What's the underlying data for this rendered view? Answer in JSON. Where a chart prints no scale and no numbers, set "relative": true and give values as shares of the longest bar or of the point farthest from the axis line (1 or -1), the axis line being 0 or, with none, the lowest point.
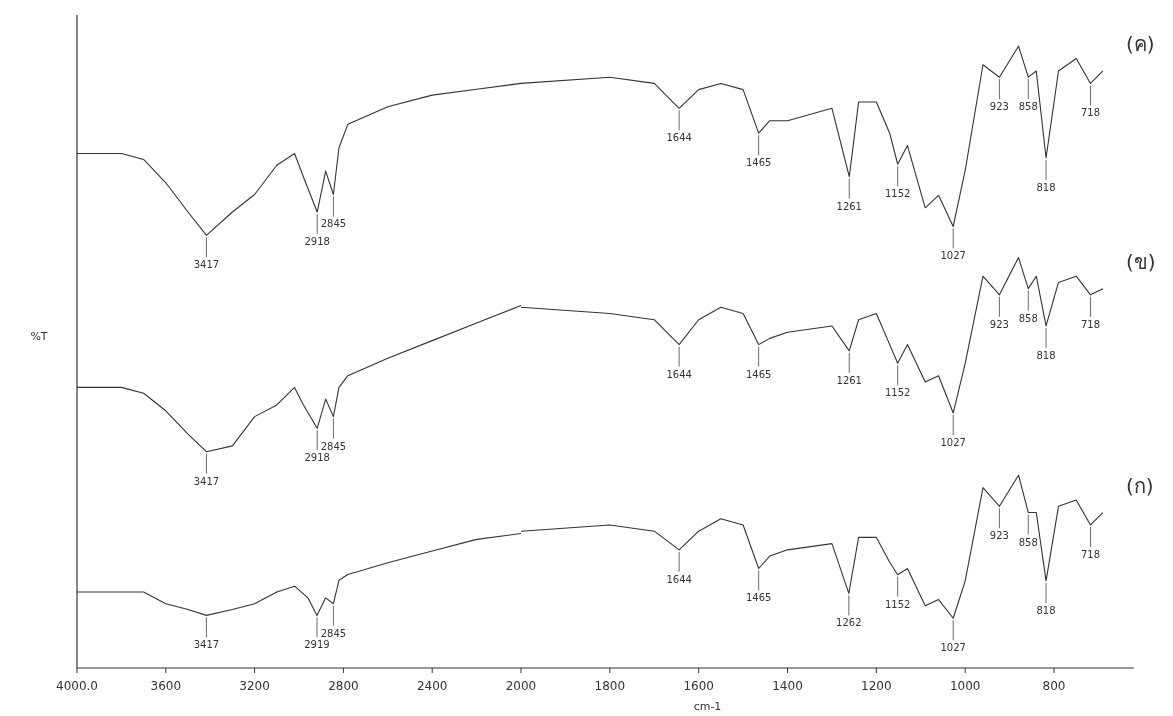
{
  "chart_data": [
    {
      "type": "line",
      "relative": true,
      "ylabel": "%T",
      "xlim": [
        4000,
        2000
      ],
      "xticks": [
        {
          "value": 4000,
          "label": "4000.0"
        },
        3600,
        3200,
        2800,
        2400
      ],
      "marker": "none",
      "line_style": "solid",
      "series": [
        {
          "color": "#333333",
          "x": [
            4000,
            3800,
            3700,
            3600,
            3500,
            3417,
            3300,
            3200,
            3100,
            3020,
            2980,
            2918,
            2880,
            2845,
            2820,
            2780,
            2600,
            2400,
            2200,
            2000
          ],
          "values": [
            0.88,
            0.88,
            0.87,
            0.83,
            0.78,
            0.74,
            0.78,
            0.81,
            0.86,
            0.88,
            0.84,
            0.78,
            0.85,
            0.81,
            0.89,
            0.93,
            0.96,
            0.98,
            0.99,
            1.0
          ]
        },
        {
          "color": "#333333",
          "x": [
            4000,
            3800,
            3700,
            3600,
            3500,
            3417,
            3300,
            3200,
            3100,
            3020,
            2980,
            2918,
            2880,
            2845,
            2820,
            2780,
            2600,
            2400,
            2200,
            2000
          ],
          "values": [
            0.48,
            0.48,
            0.47,
            0.44,
            0.4,
            0.37,
            0.38,
            0.43,
            0.45,
            0.48,
            0.45,
            0.41,
            0.46,
            0.43,
            0.48,
            0.5,
            0.53,
            0.56,
            0.59,
            0.62
          ]
        },
        {
          "color": "#333333",
          "x": [
            4000,
            3800,
            3700,
            3600,
            3500,
            3417,
            3300,
            3200,
            3100,
            3020,
            2960,
            2919,
            2880,
            2845,
            2820,
            2780,
            2600,
            2400,
            2200,
            2000
          ],
          "values": [
            0.13,
            0.13,
            0.13,
            0.11,
            0.1,
            0.09,
            0.1,
            0.11,
            0.13,
            0.14,
            0.12,
            0.09,
            0.12,
            0.11,
            0.15,
            0.16,
            0.18,
            0.2,
            0.22,
            0.23
          ]
        }
      ],
      "annotations": [
        {
          "text": "3417",
          "x": 3417,
          "y": 0.74
        },
        {
          "text": "2918",
          "x": 2918,
          "y": 0.78
        },
        {
          "text": "2845",
          "x": 2845,
          "y": 0.81
        },
        {
          "text": "3417",
          "x": 3417,
          "y": 0.37
        },
        {
          "text": "2918",
          "x": 2918,
          "y": 0.41
        },
        {
          "text": "2845",
          "x": 2845,
          "y": 0.43
        },
        {
          "text": "3417",
          "x": 3417,
          "y": 0.09
        },
        {
          "text": "2919",
          "x": 2919,
          "y": 0.09
        },
        {
          "text": "2845",
          "x": 2845,
          "y": 0.11
        }
      ]
    },
    {
      "type": "line",
      "relative": true,
      "xlabel": "cm-1",
      "xlim": [
        2000,
        620
      ],
      "xticks": [
        2000,
        1800,
        1600,
        1400,
        1200,
        1000,
        800
      ],
      "marker": "none",
      "line_style": "solid",
      "series": [
        {
          "name": "(ค)",
          "color": "#333333",
          "x": [
            2000,
            1800,
            1700,
            1644,
            1600,
            1550,
            1500,
            1465,
            1440,
            1400,
            1300,
            1261,
            1240,
            1200,
            1170,
            1152,
            1130,
            1090,
            1060,
            1027,
            1000,
            960,
            923,
            880,
            858,
            840,
            818,
            790,
            750,
            718,
            690
          ],
          "values": [
            0.94,
            0.95,
            0.94,
            0.9,
            0.93,
            0.94,
            0.93,
            0.86,
            0.88,
            0.88,
            0.9,
            0.79,
            0.91,
            0.91,
            0.86,
            0.81,
            0.84,
            0.74,
            0.76,
            0.71,
            0.8,
            0.97,
            0.95,
            1.0,
            0.95,
            0.96,
            0.82,
            0.96,
            0.98,
            0.94,
            0.96
          ]
        },
        {
          "name": "(ข)",
          "color": "#333333",
          "x": [
            2000,
            1800,
            1700,
            1644,
            1600,
            1550,
            1500,
            1465,
            1440,
            1400,
            1300,
            1261,
            1240,
            1200,
            1170,
            1152,
            1130,
            1090,
            1060,
            1027,
            1000,
            960,
            923,
            880,
            858,
            840,
            818,
            790,
            750,
            718,
            690
          ],
          "values": [
            0.58,
            0.57,
            0.56,
            0.52,
            0.56,
            0.58,
            0.57,
            0.52,
            0.53,
            0.54,
            0.55,
            0.51,
            0.56,
            0.57,
            0.52,
            0.49,
            0.52,
            0.46,
            0.47,
            0.41,
            0.49,
            0.63,
            0.6,
            0.66,
            0.61,
            0.63,
            0.55,
            0.62,
            0.63,
            0.6,
            0.61
          ]
        },
        {
          "name": "(ก)",
          "color": "#333333",
          "x": [
            2000,
            1800,
            1700,
            1644,
            1600,
            1550,
            1500,
            1465,
            1440,
            1400,
            1300,
            1262,
            1240,
            1200,
            1170,
            1152,
            1130,
            1090,
            1060,
            1027,
            1000,
            960,
            923,
            880,
            858,
            840,
            818,
            790,
            750,
            718,
            690
          ],
          "values": [
            0.22,
            0.23,
            0.22,
            0.19,
            0.22,
            0.24,
            0.23,
            0.16,
            0.18,
            0.19,
            0.2,
            0.12,
            0.21,
            0.21,
            0.17,
            0.15,
            0.16,
            0.1,
            0.11,
            0.08,
            0.14,
            0.29,
            0.26,
            0.31,
            0.25,
            0.25,
            0.14,
            0.26,
            0.27,
            0.23,
            0.25
          ]
        }
      ],
      "annotations": [
        {
          "text": "1644",
          "x": 1644,
          "y": 0.9
        },
        {
          "text": "1465",
          "x": 1465,
          "y": 0.86
        },
        {
          "text": "1261",
          "x": 1261,
          "y": 0.79
        },
        {
          "text": "1152",
          "x": 1152,
          "y": 0.81
        },
        {
          "text": "1027",
          "x": 1027,
          "y": 0.71
        },
        {
          "text": "923",
          "x": 923,
          "y": 0.95
        },
        {
          "text": "858",
          "x": 858,
          "y": 0.95
        },
        {
          "text": "818",
          "x": 818,
          "y": 0.82
        },
        {
          "text": "718",
          "x": 718,
          "y": 0.94
        },
        {
          "text": "1644",
          "x": 1644,
          "y": 0.52
        },
        {
          "text": "1465",
          "x": 1465,
          "y": 0.52
        },
        {
          "text": "1261",
          "x": 1261,
          "y": 0.51
        },
        {
          "text": "1152",
          "x": 1152,
          "y": 0.49
        },
        {
          "text": "1027",
          "x": 1027,
          "y": 0.41
        },
        {
          "text": "923",
          "x": 923,
          "y": 0.6
        },
        {
          "text": "858",
          "x": 858,
          "y": 0.61
        },
        {
          "text": "818",
          "x": 818,
          "y": 0.55
        },
        {
          "text": "718",
          "x": 718,
          "y": 0.6
        },
        {
          "text": "1644",
          "x": 1644,
          "y": 0.19
        },
        {
          "text": "1465",
          "x": 1465,
          "y": 0.16
        },
        {
          "text": "1262",
          "x": 1262,
          "y": 0.12
        },
        {
          "text": "1152",
          "x": 1152,
          "y": 0.15
        },
        {
          "text": "1027",
          "x": 1027,
          "y": 0.08
        },
        {
          "text": "923",
          "x": 923,
          "y": 0.26
        },
        {
          "text": "858",
          "x": 858,
          "y": 0.25
        },
        {
          "text": "818",
          "x": 818,
          "y": 0.14
        },
        {
          "text": "718",
          "x": 718,
          "y": 0.23
        }
      ]
    }
  ]
}
